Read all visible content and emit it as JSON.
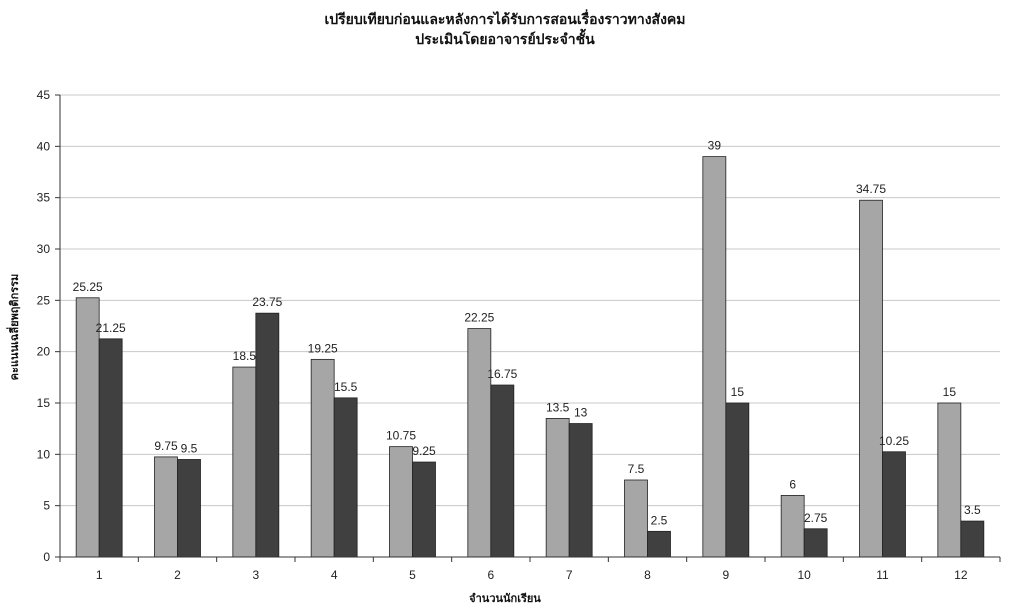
{
  "chart_data": {
    "type": "bar",
    "title": "เปรียบเทียบก่อนและหลังการได้รับการสอนเรื่องราวทางสังคม",
    "subtitle": "ประเมินโดยอาจารย์ประจำชั้น",
    "xlabel": "จำนวนนักเรียน",
    "ylabel": "คะแนนเฉลี่ยพฤติกรรม",
    "categories": [
      "1",
      "2",
      "3",
      "4",
      "5",
      "6",
      "7",
      "8",
      "9",
      "10",
      "11",
      "12"
    ],
    "series": [
      {
        "values": [
          25.25,
          9.75,
          18.5,
          19.25,
          10.75,
          22.25,
          13.5,
          7.5,
          39,
          6,
          34.75,
          15
        ],
        "color": "#a6a6a6"
      },
      {
        "values": [
          21.25,
          9.5,
          23.75,
          15.5,
          9.25,
          16.75,
          13,
          2.5,
          15,
          2.75,
          10.25,
          3.5
        ],
        "color": "#404040"
      }
    ],
    "ylim": [
      0,
      45
    ],
    "yticks": [
      0,
      5,
      10,
      15,
      20,
      25,
      30,
      35,
      40,
      45
    ],
    "grid": true,
    "legend": "none",
    "data_labels": true
  }
}
